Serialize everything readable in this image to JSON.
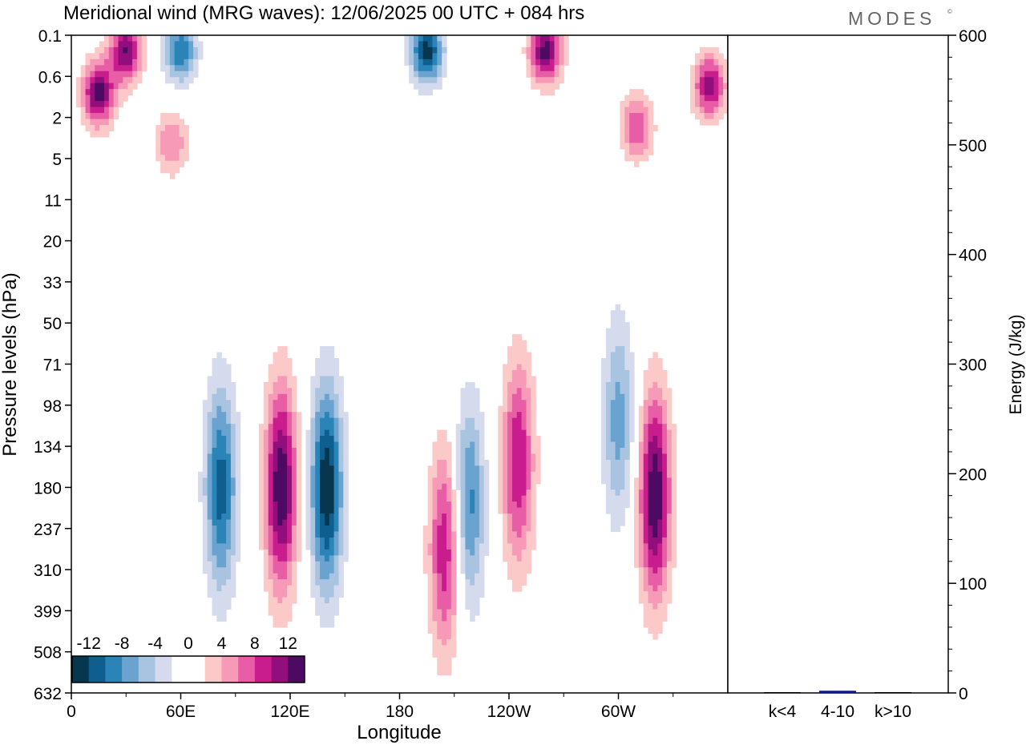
{
  "header": {
    "title": "Meridional wind (MRG waves):  12/06/2025  00 UTC  + 084 hrs",
    "brand": "MODES",
    "brand_mark": "©"
  },
  "colorbar": {
    "labels": [
      "-12",
      "-8",
      "-4",
      "0",
      "4",
      "8",
      "12"
    ],
    "colors": [
      "#07364f",
      "#0e5f8f",
      "#2a84b8",
      "#6aa3cf",
      "#a8c4e0",
      "#d5dbec",
      "#ffffff",
      "#ffffff",
      "#fbc9c8",
      "#f69ab7",
      "#e85ea6",
      "#c91d8e",
      "#920e7d",
      "#4d0a63"
    ]
  },
  "chart_data": [
    {
      "type": "heatmap",
      "title": "Meridional wind (MRG waves):  12/06/2025  00 UTC  + 084 hrs",
      "xlabel": "Longitude",
      "ylabel": "Pressure levels (hPa)",
      "x_ticks": [
        "0",
        "60E",
        "120E",
        "180",
        "120W",
        "60W"
      ],
      "y_ticks": [
        "0.1",
        "0.6",
        "2",
        "5",
        "11",
        "20",
        "33",
        "50",
        "71",
        "98",
        "134",
        "180",
        "237",
        "310",
        "399",
        "508",
        "632"
      ],
      "contour_levels": [
        -12,
        -10,
        -8,
        -6,
        -4,
        -2,
        0,
        2,
        4,
        6,
        8,
        10,
        12
      ],
      "features": [
        {
          "lon": 15,
          "p": 1.0,
          "v": 13
        },
        {
          "lon": 30,
          "p": 0.2,
          "v": 12
        },
        {
          "lon": 60,
          "p": 0.2,
          "v": -10
        },
        {
          "lon": 55,
          "p": 3.5,
          "v": 6
        },
        {
          "lon": 82,
          "p": 180,
          "v": -11
        },
        {
          "lon": 115,
          "p": 180,
          "v": 14
        },
        {
          "lon": 140,
          "p": 180,
          "v": -14
        },
        {
          "lon": 205,
          "p": 270,
          "v": 10
        },
        {
          "lon": 218,
          "p": 200,
          "v": -9
        },
        {
          "lon": 245,
          "p": 150,
          "v": 10
        },
        {
          "lon": 320,
          "p": 190,
          "v": 14
        },
        {
          "lon": 300,
          "p": 110,
          "v": -7
        },
        {
          "lon": 195,
          "p": 0.2,
          "v": -13
        },
        {
          "lon": 260,
          "p": 0.2,
          "v": 13
        },
        {
          "lon": 310,
          "p": 2.5,
          "v": 8
        },
        {
          "lon": 350,
          "p": 0.8,
          "v": 11
        }
      ]
    },
    {
      "type": "bar",
      "categories": [
        "k<4",
        "4-10",
        "k>10"
      ],
      "values": [
        0,
        2,
        0
      ],
      "ylabel": "Energy (J/kg)",
      "ylim": [
        0,
        600
      ],
      "y_ticks": [
        "0",
        "100",
        "200",
        "300",
        "400",
        "500",
        "600"
      ],
      "bar_color": "#0a1a8c"
    }
  ]
}
